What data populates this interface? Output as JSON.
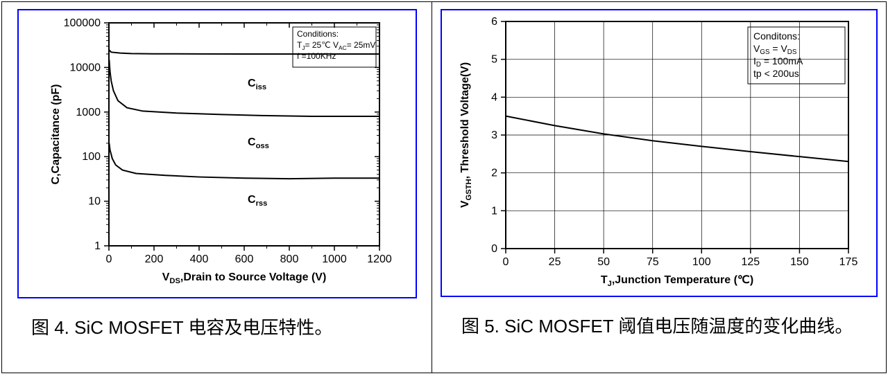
{
  "figure_left": {
    "caption": "图 4. SiC MOSFET  电容及电压特性。",
    "chart": {
      "type": "line",
      "background_color": "#ffffff",
      "frame_border_color": "#0000ff",
      "axis_color": "#000000",
      "curve_color": "#000000",
      "curve_width": 2.0,
      "xlabel": "V_DS,Drain to Source Voltage (V)",
      "ylabel": "C,Capacitance (pF)",
      "xlabel_fontsize": 16,
      "ylabel_fontsize": 16,
      "tick_fontsize": 16,
      "x": {
        "min": 0,
        "max": 1200,
        "ticks": [
          0,
          200,
          400,
          600,
          800,
          1000,
          1200
        ],
        "scale": "linear"
      },
      "y": {
        "min": 1,
        "max": 100000,
        "ticks": [
          1,
          10,
          100,
          1000,
          10000,
          100000
        ],
        "scale": "log"
      },
      "conditions_box": {
        "title": "Conditions:",
        "lines": [
          "T_J = 25℃  V_AC = 25mV",
          "f = 100KHz"
        ],
        "fontsize": 12
      },
      "series": [
        {
          "name": "Ciss",
          "label": "C_iss",
          "data": [
            [
              0,
              25000
            ],
            [
              10,
              22000
            ],
            [
              50,
              21000
            ],
            [
              100,
              20500
            ],
            [
              200,
              20200
            ],
            [
              400,
              20100
            ],
            [
              600,
              20050
            ],
            [
              800,
              20050
            ],
            [
              1000,
              20050
            ],
            [
              1200,
              20050
            ]
          ]
        },
        {
          "name": "Coss",
          "label": "C_oss",
          "data": [
            [
              1,
              15000
            ],
            [
              5,
              8000
            ],
            [
              10,
              5000
            ],
            [
              20,
              3000
            ],
            [
              40,
              1800
            ],
            [
              80,
              1250
            ],
            [
              150,
              1050
            ],
            [
              300,
              950
            ],
            [
              500,
              880
            ],
            [
              700,
              830
            ],
            [
              900,
              800
            ],
            [
              1100,
              800
            ],
            [
              1200,
              800
            ]
          ]
        },
        {
          "name": "Crss",
          "label": "C_rss",
          "data": [
            [
              1,
              200
            ],
            [
              5,
              140
            ],
            [
              15,
              90
            ],
            [
              30,
              65
            ],
            [
              60,
              50
            ],
            [
              120,
              42
            ],
            [
              250,
              38
            ],
            [
              400,
              35
            ],
            [
              600,
              33
            ],
            [
              800,
              32
            ],
            [
              1000,
              33
            ],
            [
              1100,
              33
            ],
            [
              1200,
              33
            ]
          ]
        }
      ],
      "series_label_fontsize": 16
    }
  },
  "figure_right": {
    "caption": "图 5. SiC MOSFET  阈值电压随温度的变化曲线。",
    "chart": {
      "type": "line",
      "background_color": "#ffffff",
      "frame_border_color": "#0000ff",
      "axis_color": "#000000",
      "curve_color": "#000000",
      "curve_width": 2.0,
      "grid_color": "#000000",
      "grid_on": true,
      "xlabel": "T_J,Junction Temperature (℃)",
      "ylabel": "V_GSTH, Threshold Voltage(V)",
      "xlabel_fontsize": 16,
      "ylabel_fontsize": 16,
      "tick_fontsize": 16,
      "x": {
        "min": 0,
        "max": 175,
        "ticks": [
          0,
          25,
          50,
          75,
          100,
          125,
          150,
          175
        ],
        "scale": "linear"
      },
      "y": {
        "min": 0,
        "max": 6,
        "ticks": [
          0,
          1,
          2,
          3,
          4,
          5,
          6
        ],
        "scale": "linear"
      },
      "conditions_box": {
        "title": "Conditons:",
        "lines": [
          "V_GS = V_DS",
          "I_D = 100mA",
          "tp < 200us"
        ],
        "fontsize": 14
      },
      "series": [
        {
          "name": "Vgsth",
          "data": [
            [
              0,
              3.5
            ],
            [
              25,
              3.25
            ],
            [
              50,
              3.03
            ],
            [
              75,
              2.85
            ],
            [
              100,
              2.7
            ],
            [
              125,
              2.56
            ],
            [
              150,
              2.43
            ],
            [
              175,
              2.3
            ]
          ]
        }
      ]
    }
  }
}
